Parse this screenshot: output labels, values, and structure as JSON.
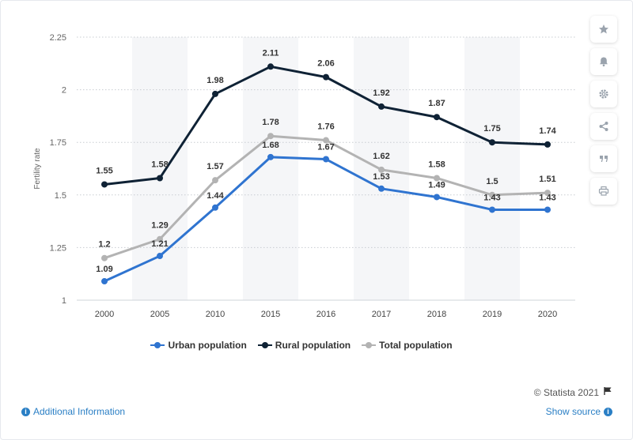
{
  "chart_data": {
    "type": "line",
    "categories": [
      "2000",
      "2005",
      "2010",
      "2015",
      "2016",
      "2017",
      "2018",
      "2019",
      "2020"
    ],
    "ylabel": "Fertility rate",
    "ylim": [
      1,
      2.25
    ],
    "yticks": [
      "1",
      "1.25",
      "1.5",
      "1.75",
      "2",
      "2.25"
    ],
    "ytick_values": [
      1,
      1.25,
      1.5,
      1.75,
      2,
      2.25
    ],
    "grid": true,
    "legend_position": "bottom",
    "series": [
      {
        "name": "Urban population",
        "color": "#2f74d0",
        "values": [
          1.09,
          1.21,
          1.44,
          1.68,
          1.67,
          1.53,
          1.49,
          1.43,
          1.43
        ],
        "labels": [
          "1.09",
          "1.21",
          "1.44",
          "1.68",
          "1.67",
          "1.53",
          "1.49",
          "1.43",
          "1.43"
        ]
      },
      {
        "name": "Rural population",
        "color": "#0f2235",
        "values": [
          1.55,
          1.58,
          1.98,
          2.11,
          2.06,
          1.92,
          1.87,
          1.75,
          1.74
        ],
        "labels": [
          "1.55",
          "1.58",
          "1.98",
          "2.11",
          "2.06",
          "1.92",
          "1.87",
          "1.75",
          "1.74"
        ]
      },
      {
        "name": "Total population",
        "color": "#b3b3b3",
        "values": [
          1.2,
          1.29,
          1.57,
          1.78,
          1.76,
          1.62,
          1.58,
          1.5,
          1.51
        ],
        "labels": [
          "1.2",
          "1.29",
          "1.57",
          "1.78",
          "1.76",
          "1.62",
          "1.58",
          "1.5",
          "1.51"
        ]
      }
    ]
  },
  "credit": "© Statista 2021",
  "additional_info": "Additional Information",
  "show_source": "Show source",
  "icons": [
    "star-icon",
    "bell-icon",
    "gear-icon",
    "share-icon",
    "quote-icon",
    "print-icon",
    "flag-icon",
    "info-icon"
  ]
}
